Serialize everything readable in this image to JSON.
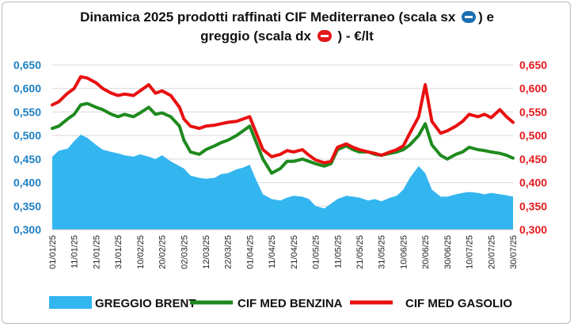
{
  "title": {
    "line1_text": "Dinamica 2025 prodotti raffinati CIF Mediterraneo (scala sx",
    "line1_end": ") e",
    "line2_text": "greggio (scala dx",
    "line2_end": ") - €/lt",
    "left_arrow_icon": "left-arrow-icon",
    "right_arrow_icon": "right-arrow-icon",
    "left_arrow_color": "#1a6fb0",
    "right_arrow_color": "#e3191c"
  },
  "chart_data": {
    "type": "line",
    "title": "Dinamica 2025 prodotti raffinati CIF Mediterraneo (scala sx ⬅) e greggio (scala dx ➡) - €/lt",
    "x_range": [
      "01/01/25",
      "30/07/25"
    ],
    "x_tick_labels": [
      "01/01/25",
      "11/01/25",
      "21/01/25",
      "31/01/25",
      "10/02/25",
      "20/02/25",
      "02/03/25",
      "12/03/25",
      "22/03/25",
      "01/04/25",
      "11/04/25",
      "21/04/25",
      "01/05/25",
      "11/05/25",
      "21/05/25",
      "31/05/25",
      "10/06/25",
      "20/06/25",
      "30/06/25",
      "10/07/25",
      "20/07/25",
      "30/07/25"
    ],
    "y_left_ticks": [
      "0,300",
      "0,350",
      "0,400",
      "0,450",
      "0,500",
      "0,550",
      "0,600",
      "0,650"
    ],
    "y_right_ticks": [
      "0,300",
      "0,350",
      "0,400",
      "0,450",
      "0,500",
      "0,550",
      "0,600",
      "0,650"
    ],
    "y_left_range": [
      0.3,
      0.65
    ],
    "y_right_range": [
      0.3,
      0.65
    ],
    "grid": true,
    "legend_position": "bottom",
    "series": [
      {
        "name": "GREGGIO BRENT",
        "render": "area",
        "color": "#33b5f0",
        "points": [
          [
            "01/01/25",
            0.455
          ],
          [
            "04/01/25",
            0.468
          ],
          [
            "08/01/25",
            0.472
          ],
          [
            "11/01/25",
            0.488
          ],
          [
            "14/01/25",
            0.502
          ],
          [
            "17/01/25",
            0.495
          ],
          [
            "21/01/25",
            0.48
          ],
          [
            "24/01/25",
            0.47
          ],
          [
            "28/01/25",
            0.465
          ],
          [
            "31/01/25",
            0.462
          ],
          [
            "03/02/25",
            0.458
          ],
          [
            "07/02/25",
            0.455
          ],
          [
            "10/02/25",
            0.46
          ],
          [
            "14/02/25",
            0.455
          ],
          [
            "17/02/25",
            0.45
          ],
          [
            "20/02/25",
            0.458
          ],
          [
            "24/02/25",
            0.445
          ],
          [
            "28/02/25",
            0.435
          ],
          [
            "02/03/25",
            0.43
          ],
          [
            "05/03/25",
            0.415
          ],
          [
            "09/03/25",
            0.41
          ],
          [
            "12/03/25",
            0.408
          ],
          [
            "16/03/25",
            0.41
          ],
          [
            "19/03/25",
            0.418
          ],
          [
            "22/03/25",
            0.42
          ],
          [
            "26/03/25",
            0.428
          ],
          [
            "29/03/25",
            0.432
          ],
          [
            "01/04/25",
            0.438
          ],
          [
            "04/04/25",
            0.405
          ],
          [
            "07/04/25",
            0.375
          ],
          [
            "11/04/25",
            0.365
          ],
          [
            "15/04/25",
            0.362
          ],
          [
            "18/04/25",
            0.368
          ],
          [
            "21/04/25",
            0.372
          ],
          [
            "25/04/25",
            0.37
          ],
          [
            "28/04/25",
            0.365
          ],
          [
            "01/05/25",
            0.35
          ],
          [
            "05/05/25",
            0.345
          ],
          [
            "08/05/25",
            0.355
          ],
          [
            "11/05/25",
            0.365
          ],
          [
            "15/05/25",
            0.372
          ],
          [
            "18/05/25",
            0.37
          ],
          [
            "21/05/25",
            0.368
          ],
          [
            "25/05/25",
            0.362
          ],
          [
            "28/05/25",
            0.365
          ],
          [
            "31/05/25",
            0.36
          ],
          [
            "04/06/25",
            0.368
          ],
          [
            "07/06/25",
            0.372
          ],
          [
            "10/06/25",
            0.385
          ],
          [
            "13/06/25",
            0.41
          ],
          [
            "17/06/25",
            0.435
          ],
          [
            "20/06/25",
            0.42
          ],
          [
            "23/06/25",
            0.385
          ],
          [
            "27/06/25",
            0.37
          ],
          [
            "30/06/25",
            0.37
          ],
          [
            "04/07/25",
            0.375
          ],
          [
            "07/07/25",
            0.378
          ],
          [
            "10/07/25",
            0.38
          ],
          [
            "14/07/25",
            0.378
          ],
          [
            "17/07/25",
            0.375
          ],
          [
            "20/07/25",
            0.378
          ],
          [
            "24/07/25",
            0.375
          ],
          [
            "27/07/25",
            0.373
          ],
          [
            "30/07/25",
            0.37
          ]
        ]
      },
      {
        "name": "CIF MED BENZINA",
        "render": "line",
        "color": "#1e8a1e",
        "points": [
          [
            "01/01/25",
            0.515
          ],
          [
            "04/01/25",
            0.52
          ],
          [
            "08/01/25",
            0.535
          ],
          [
            "11/01/25",
            0.545
          ],
          [
            "14/01/25",
            0.565
          ],
          [
            "17/01/25",
            0.568
          ],
          [
            "21/01/25",
            0.56
          ],
          [
            "24/01/25",
            0.555
          ],
          [
            "28/01/25",
            0.545
          ],
          [
            "31/01/25",
            0.54
          ],
          [
            "03/02/25",
            0.545
          ],
          [
            "07/02/25",
            0.54
          ],
          [
            "10/02/25",
            0.548
          ],
          [
            "14/02/25",
            0.56
          ],
          [
            "17/02/25",
            0.545
          ],
          [
            "20/02/25",
            0.548
          ],
          [
            "24/02/25",
            0.54
          ],
          [
            "28/02/25",
            0.52
          ],
          [
            "02/03/25",
            0.49
          ],
          [
            "05/03/25",
            0.465
          ],
          [
            "09/03/25",
            0.46
          ],
          [
            "12/03/25",
            0.47
          ],
          [
            "16/03/25",
            0.478
          ],
          [
            "19/03/25",
            0.485
          ],
          [
            "22/03/25",
            0.49
          ],
          [
            "26/03/25",
            0.5
          ],
          [
            "29/03/25",
            0.51
          ],
          [
            "01/04/25",
            0.52
          ],
          [
            "04/04/25",
            0.485
          ],
          [
            "07/04/25",
            0.45
          ],
          [
            "11/04/25",
            0.42
          ],
          [
            "15/04/25",
            0.43
          ],
          [
            "18/04/25",
            0.445
          ],
          [
            "21/04/25",
            0.445
          ],
          [
            "25/04/25",
            0.45
          ],
          [
            "28/04/25",
            0.445
          ],
          [
            "01/05/25",
            0.44
          ],
          [
            "05/05/25",
            0.435
          ],
          [
            "08/05/25",
            0.44
          ],
          [
            "11/05/25",
            0.47
          ],
          [
            "15/05/25",
            0.478
          ],
          [
            "18/05/25",
            0.47
          ],
          [
            "21/05/25",
            0.465
          ],
          [
            "25/05/25",
            0.465
          ],
          [
            "28/05/25",
            0.46
          ],
          [
            "31/05/25",
            0.458
          ],
          [
            "04/06/25",
            0.462
          ],
          [
            "07/06/25",
            0.465
          ],
          [
            "10/06/25",
            0.47
          ],
          [
            "13/06/25",
            0.48
          ],
          [
            "17/06/25",
            0.5
          ],
          [
            "20/06/25",
            0.525
          ],
          [
            "23/06/25",
            0.48
          ],
          [
            "27/06/25",
            0.458
          ],
          [
            "30/06/25",
            0.45
          ],
          [
            "04/07/25",
            0.46
          ],
          [
            "07/07/25",
            0.465
          ],
          [
            "10/07/25",
            0.475
          ],
          [
            "14/07/25",
            0.47
          ],
          [
            "17/07/25",
            0.468
          ],
          [
            "20/07/25",
            0.465
          ],
          [
            "24/07/25",
            0.462
          ],
          [
            "27/07/25",
            0.458
          ],
          [
            "30/07/25",
            0.452
          ]
        ]
      },
      {
        "name": "CIF MED GASOLIO",
        "render": "line",
        "color": "#e81010",
        "points": [
          [
            "01/01/25",
            0.565
          ],
          [
            "04/01/25",
            0.572
          ],
          [
            "08/01/25",
            0.59
          ],
          [
            "11/01/25",
            0.6
          ],
          [
            "14/01/25",
            0.625
          ],
          [
            "17/01/25",
            0.622
          ],
          [
            "21/01/25",
            0.612
          ],
          [
            "24/01/25",
            0.6
          ],
          [
            "28/01/25",
            0.59
          ],
          [
            "31/01/25",
            0.585
          ],
          [
            "03/02/25",
            0.588
          ],
          [
            "07/02/25",
            0.585
          ],
          [
            "10/02/25",
            0.595
          ],
          [
            "14/02/25",
            0.608
          ],
          [
            "17/02/25",
            0.59
          ],
          [
            "20/02/25",
            0.595
          ],
          [
            "24/02/25",
            0.585
          ],
          [
            "28/02/25",
            0.56
          ],
          [
            "02/03/25",
            0.535
          ],
          [
            "05/03/25",
            0.52
          ],
          [
            "09/03/25",
            0.515
          ],
          [
            "12/03/25",
            0.52
          ],
          [
            "16/03/25",
            0.522
          ],
          [
            "19/03/25",
            0.525
          ],
          [
            "22/03/25",
            0.528
          ],
          [
            "26/03/25",
            0.53
          ],
          [
            "29/03/25",
            0.535
          ],
          [
            "01/04/25",
            0.54
          ],
          [
            "04/04/25",
            0.505
          ],
          [
            "07/04/25",
            0.47
          ],
          [
            "11/04/25",
            0.455
          ],
          [
            "15/04/25",
            0.46
          ],
          [
            "18/04/25",
            0.468
          ],
          [
            "21/04/25",
            0.465
          ],
          [
            "25/04/25",
            0.47
          ],
          [
            "28/04/25",
            0.458
          ],
          [
            "01/05/25",
            0.448
          ],
          [
            "05/05/25",
            0.442
          ],
          [
            "08/05/25",
            0.445
          ],
          [
            "11/05/25",
            0.475
          ],
          [
            "15/05/25",
            0.482
          ],
          [
            "18/05/25",
            0.475
          ],
          [
            "21/05/25",
            0.47
          ],
          [
            "25/05/25",
            0.465
          ],
          [
            "28/05/25",
            0.462
          ],
          [
            "31/05/25",
            0.458
          ],
          [
            "04/06/25",
            0.465
          ],
          [
            "07/06/25",
            0.47
          ],
          [
            "10/06/25",
            0.478
          ],
          [
            "13/06/25",
            0.505
          ],
          [
            "17/06/25",
            0.54
          ],
          [
            "20/06/25",
            0.608
          ],
          [
            "23/06/25",
            0.53
          ],
          [
            "27/06/25",
            0.505
          ],
          [
            "30/06/25",
            0.51
          ],
          [
            "04/07/25",
            0.52
          ],
          [
            "07/07/25",
            0.53
          ],
          [
            "10/07/25",
            0.545
          ],
          [
            "14/07/25",
            0.54
          ],
          [
            "17/07/25",
            0.545
          ],
          [
            "20/07/25",
            0.538
          ],
          [
            "24/07/25",
            0.555
          ],
          [
            "27/07/25",
            0.54
          ],
          [
            "30/07/25",
            0.528
          ]
        ]
      }
    ]
  }
}
